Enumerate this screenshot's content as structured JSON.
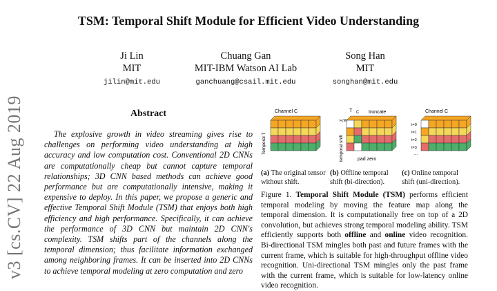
{
  "paper": {
    "title": "TSM: Temporal Shift Module for Efficient Video Understanding",
    "arxiv_stamp": "v3  [cs.CV]  22 Aug 2019"
  },
  "authors": [
    {
      "name": "Ji Lin",
      "affiliation": "MIT",
      "email": "jilin@mit.edu"
    },
    {
      "name": "Chuang Gan",
      "affiliation": "MIT-IBM Watson AI Lab",
      "email": "ganchuang@csail.mit.edu"
    },
    {
      "name": "Song Han",
      "affiliation": "MIT",
      "email": "songhan@mit.edu"
    }
  ],
  "abstract": {
    "heading": "Abstract",
    "body": "The explosive growth in video streaming gives rise to challenges on performing video understanding at high accuracy and low computation cost. Conventional 2D CNNs are computationally cheap but cannot capture temporal relationships; 3D CNN based methods can achieve good performance but are computationally intensive, making it expensive to deploy. In this paper, we propose a generic and effective Temporal Shift Module (TSM) that enjoys both high efficiency and high performance. Specifically, it can achieve the performance of 3D CNN but maintain 2D CNN's complexity. TSM shifts part of the channels along the temporal dimension; thus facilitate information exchanged among neighboring frames. It can be inserted into 2D CNNs to achieve temporal modeling at zero computation and zero"
  },
  "figure": {
    "label_channel": "Channel C",
    "label_temporal": "Temporal T",
    "label_temporal_shift": "temporal shift",
    "label_truncate": "truncate",
    "label_pad_zero": "pad zero",
    "axis_T": "T",
    "axis_H": "H,W",
    "axis_C": "C",
    "t_labels": [
      "t=0",
      "t=1",
      "t=2",
      "t=3"
    ],
    "t_dots": "...",
    "subcaptions": [
      {
        "tag": "(a)",
        "text": "The original tensor without shift."
      },
      {
        "tag": "(b)",
        "text": "Offline temporal shift (bi-direction)."
      },
      {
        "tag": "(c)",
        "text": "Online temporal shift (uni-direction)."
      }
    ],
    "caption_label": "Figure 1.",
    "caption_bold": "Temporal Shift Module (TSM)",
    "caption_text_1": " performs efficient temporal modeling by moving the feature map along the temporal dimension. It is computationally free on top of a 2D convolution, but achieves strong temporal modeling ability. TSM efficiently supports both ",
    "caption_offline": "offline",
    "caption_and": " and ",
    "caption_online": "online",
    "caption_text_2": " video recognition. Bi-directional TSM mingles both past and future frames with the current frame, which is suitable for high-throughput offline video recognition. Uni-directional TSM mingles only the past frame with the current frame, which is suitable for low-latency online video recognition.",
    "colors": {
      "orange": "#f5a623",
      "yellow": "#f5d85a",
      "red": "#e66b6b",
      "green": "#4caf6a",
      "cyan": "#6fd0e0",
      "white": "#ffffff"
    }
  }
}
